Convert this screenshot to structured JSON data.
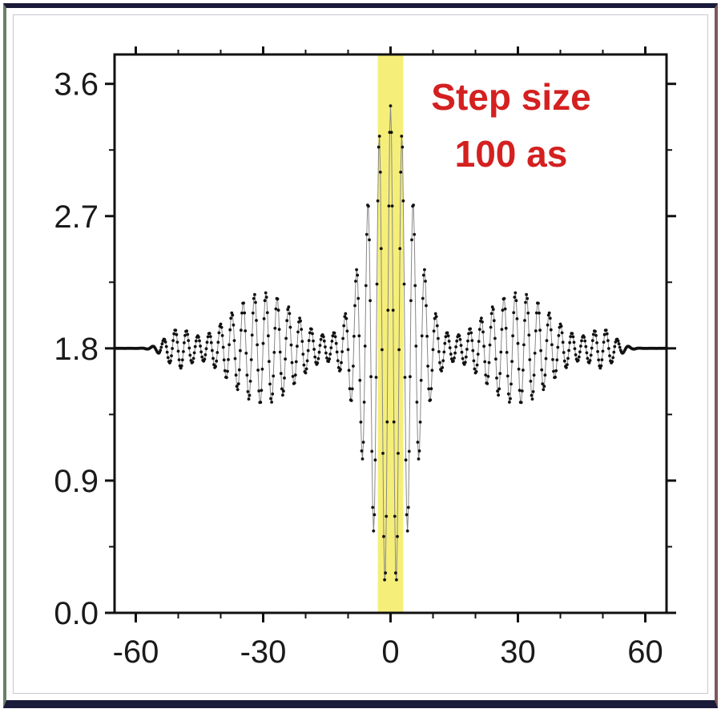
{
  "chart_data": {
    "type": "scatter",
    "title": "",
    "xlabel": "",
    "ylabel": "",
    "xlim": [
      -65,
      65
    ],
    "ylim": [
      0,
      3.8
    ],
    "x_ticks": [
      -60,
      -30,
      0,
      30,
      60
    ],
    "x_tick_labels": [
      "-60",
      "-30",
      "0",
      "30",
      "60"
    ],
    "y_ticks": [
      0.0,
      0.9,
      1.8,
      2.7,
      3.6
    ],
    "y_tick_labels": [
      "0.0",
      "0.9",
      "1.8",
      "2.7",
      "3.6"
    ],
    "grid": false,
    "legend": "none",
    "highlight_band": {
      "x": [
        -3,
        3
      ],
      "color": "#f5ef7a"
    },
    "annotation": {
      "lines": [
        "Step size",
        "100 as"
      ],
      "color": "#d42020"
    },
    "baseline": 1.8,
    "series": [
      {
        "x_range": [
          -65,
          65
        ],
        "step": 0.2,
        "carrier_period": 2.67,
        "envelope": [
          {
            "center": 0,
            "amplitude": 1.65,
            "width": 7.5
          },
          {
            "center": -30,
            "amplitude": 0.38,
            "width": 11
          },
          {
            "center": 30,
            "amplitude": 0.38,
            "width": 11
          },
          {
            "center": -50,
            "amplitude": 0.12,
            "width": 4
          },
          {
            "center": 50,
            "amplitude": 0.12,
            "width": 4
          }
        ],
        "marker_color": "#111111",
        "line_color": "#888888"
      }
    ]
  }
}
